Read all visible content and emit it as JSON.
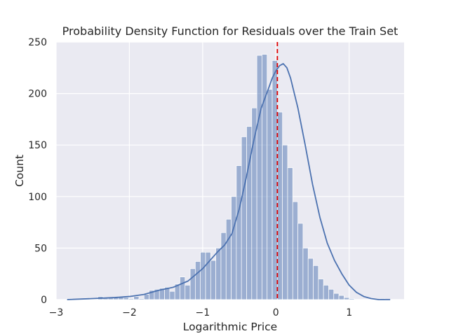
{
  "chart_data": {
    "type": "bar",
    "title": "Probability Density Function for Residuals over the Train Set",
    "xlabel": "Logarithmic Price",
    "ylabel": "Count",
    "xlim": [
      -3.0,
      1.75
    ],
    "ylim": [
      0,
      250
    ],
    "xticks": [
      -3,
      -2,
      -1,
      0,
      1
    ],
    "xtick_labels": [
      "−3",
      "−2",
      "−1",
      "0",
      "1"
    ],
    "yticks": [
      0,
      50,
      100,
      150,
      200,
      250
    ],
    "ytick_labels": [
      "0",
      "50",
      "100",
      "150",
      "200",
      "250"
    ],
    "grid": true,
    "bin_edges": [
      -2.85,
      -2.78,
      -2.71,
      -2.64,
      -2.57,
      -2.5,
      -2.43,
      -2.36,
      -2.29,
      -2.22,
      -2.15,
      -2.08,
      -2.01,
      -1.94,
      -1.87,
      -1.8,
      -1.73,
      -1.66,
      -1.59,
      -1.52,
      -1.45,
      -1.38,
      -1.31,
      -1.24,
      -1.17,
      -1.1,
      -1.03,
      -0.96,
      -0.89,
      -0.82,
      -0.75,
      -0.68,
      -0.61,
      -0.54,
      -0.47,
      -0.4,
      -0.33,
      -0.26,
      -0.19,
      -0.12,
      -0.05,
      0.02,
      0.09,
      0.16,
      0.23,
      0.3,
      0.37,
      0.44,
      0.51,
      0.58,
      0.65,
      0.72,
      0.79,
      0.86,
      0.93,
      1.0,
      1.07,
      1.14,
      1.21,
      1.28,
      1.35,
      1.42,
      1.49,
      1.56
    ],
    "counts": [
      1,
      0,
      0,
      0,
      0,
      0,
      3,
      2,
      2,
      2,
      3,
      2,
      1,
      3,
      1,
      5,
      9,
      10,
      11,
      12,
      8,
      15,
      22,
      14,
      30,
      37,
      46,
      46,
      38,
      50,
      65,
      78,
      100,
      130,
      158,
      168,
      186,
      237,
      238,
      204,
      232,
      182,
      150,
      128,
      95,
      74,
      50,
      40,
      33,
      20,
      14,
      10,
      6,
      4,
      2,
      1,
      0,
      0,
      0,
      0,
      0,
      1,
      0
    ],
    "series": [
      {
        "type": "kde",
        "x": [
          -2.85,
          -2.5,
          -2.2,
          -2.0,
          -1.8,
          -1.6,
          -1.4,
          -1.2,
          -1.0,
          -0.9,
          -0.8,
          -0.7,
          -0.6,
          -0.5,
          -0.4,
          -0.3,
          -0.2,
          -0.1,
          -0.05,
          0.0,
          0.05,
          0.1,
          0.15,
          0.2,
          0.3,
          0.4,
          0.5,
          0.6,
          0.7,
          0.8,
          0.9,
          1.0,
          1.1,
          1.2,
          1.3,
          1.4,
          1.56
        ],
        "y": [
          0,
          1,
          2,
          3,
          5,
          9,
          12,
          18,
          30,
          38,
          46,
          53,
          64,
          88,
          120,
          155,
          186,
          205,
          215,
          222,
          227,
          229,
          225,
          215,
          186,
          150,
          112,
          80,
          55,
          38,
          25,
          14,
          7,
          3,
          1,
          0,
          0
        ]
      }
    ],
    "reference_line": {
      "x": 0.02,
      "style": "dashed"
    },
    "colors": {
      "bars": "#4c72b0",
      "kde": "#4c72b0",
      "reference_line": "#e00000",
      "background": "#eaeaf2",
      "grid": "#ffffff"
    }
  }
}
